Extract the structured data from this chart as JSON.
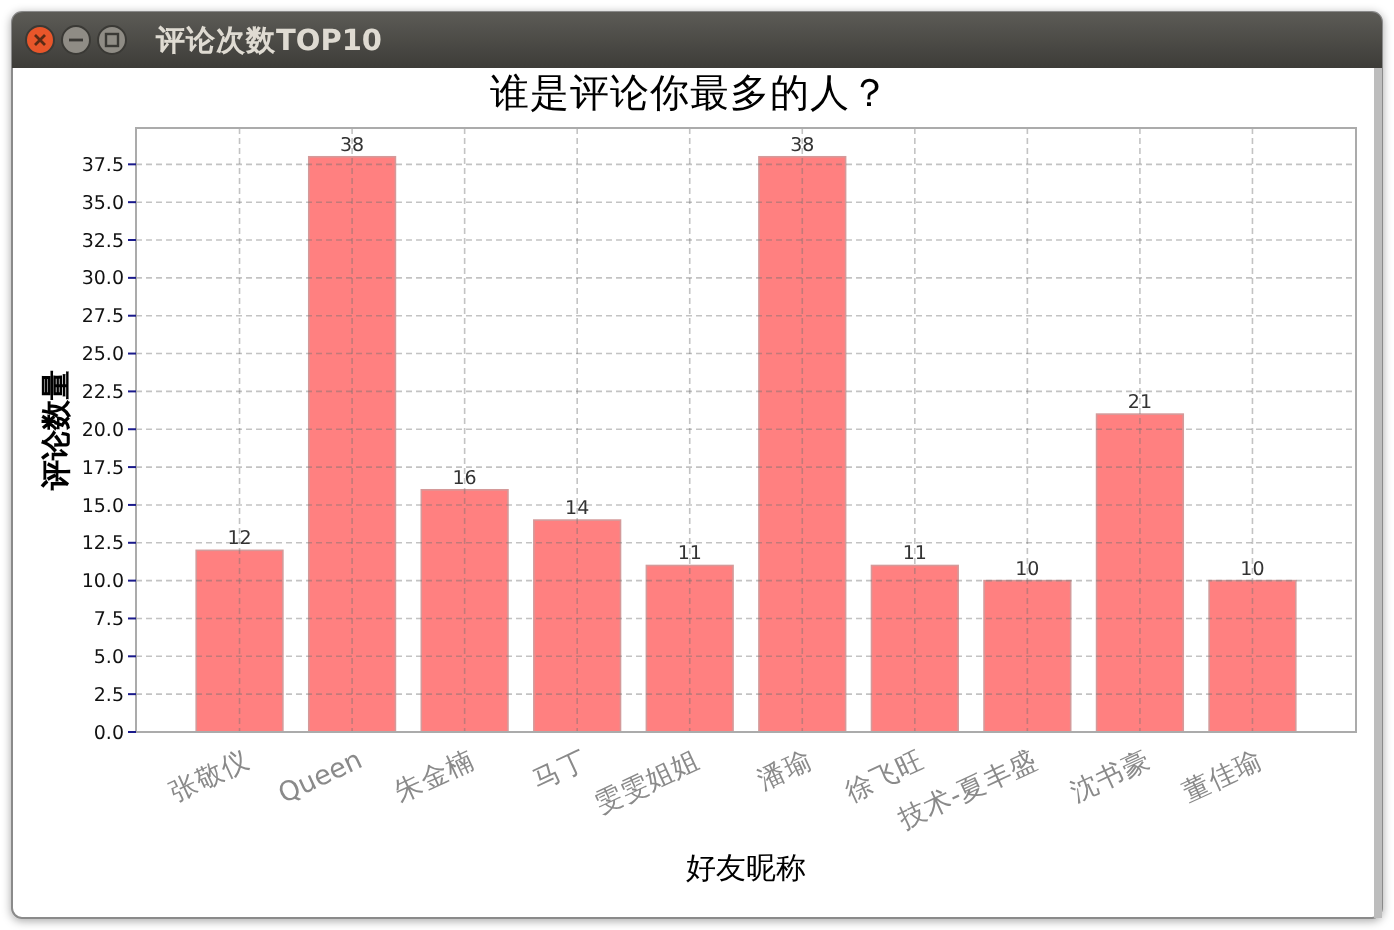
{
  "chart_data": {
    "type": "bar",
    "title": "谁是评论你最多的人？",
    "xlabel": "好友昵称",
    "ylabel": "评论数量",
    "annotations": [
      "评论次数TOP10"
    ],
    "categories": [
      "张敬仪",
      "Queen",
      "朱金楠",
      "马丁",
      "雯雯姐姐",
      "潘瑜",
      "徐飞旺",
      "技术-夏丰盛",
      "沈书豪",
      "董佳瑜"
    ],
    "values": [
      12,
      38,
      16,
      14,
      11,
      38,
      11,
      10,
      21,
      10
    ],
    "color": "#ff8080",
    "ylim": [
      0,
      39.9
    ],
    "yticks": [
      {
        "value": 0,
        "label": "0.0"
      },
      2.5,
      {
        "value": 5,
        "label": "5.0"
      },
      7.5,
      {
        "value": 10,
        "label": "10.0"
      },
      12.5,
      {
        "value": 15,
        "label": "15.0"
      },
      17.5,
      {
        "value": 20,
        "label": "20.0"
      },
      22.5,
      {
        "value": 25,
        "label": "25.0"
      },
      27.5,
      {
        "value": 30,
        "label": "30.0"
      },
      32.5,
      {
        "value": 35,
        "label": "35.0"
      },
      37.5
    ],
    "grid": true,
    "data_labels": true
  }
}
